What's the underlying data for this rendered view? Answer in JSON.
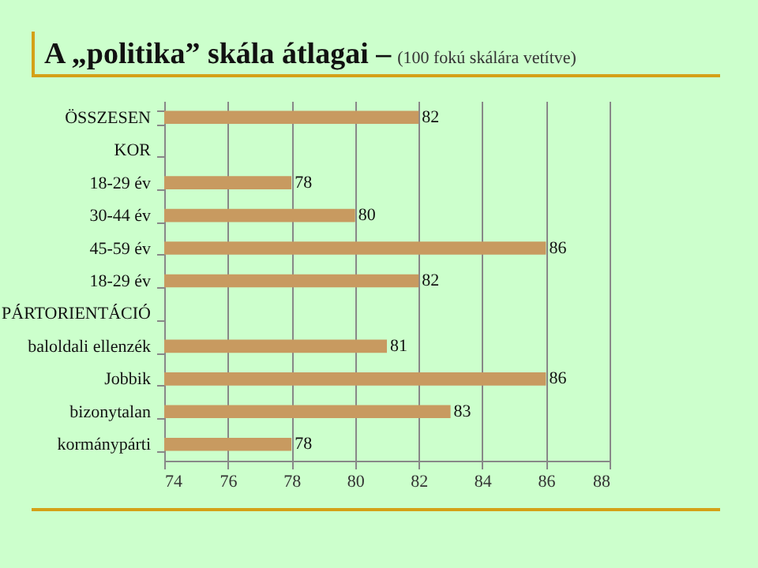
{
  "chart_data": {
    "type": "bar",
    "orientation": "horizontal",
    "title": "A „politika” skála átlagai –",
    "subtitle": "(100 fokú skálára vetítve)",
    "categories": [
      "ÖSSZESEN",
      "KOR",
      "18-29 év",
      "30-44 év",
      "45-59 év",
      "18-29 év",
      "PÁRTORIENTÁCIÓ",
      "baloldali ellenzék",
      "Jobbik",
      "bizonytalan",
      "kormánypárti"
    ],
    "values": [
      82,
      null,
      78,
      80,
      86,
      82,
      null,
      81,
      86,
      83,
      78
    ],
    "color": "#c89a60",
    "xlim": [
      74,
      88
    ],
    "xticks": [
      74,
      76,
      78,
      80,
      82,
      84,
      86,
      88
    ],
    "grid": "x",
    "data_labels": true
  }
}
